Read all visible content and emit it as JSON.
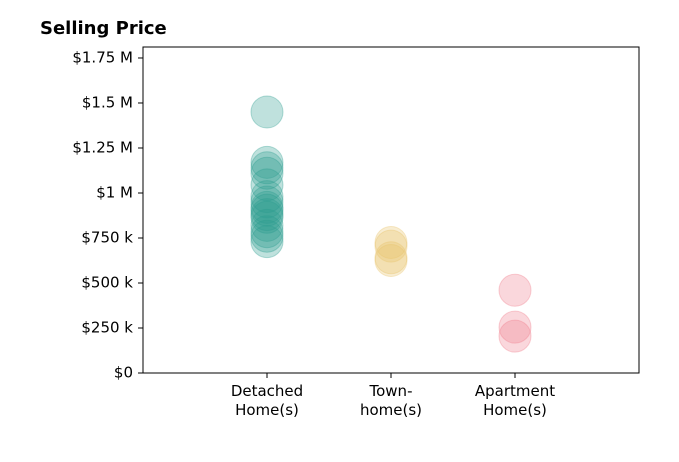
{
  "chart_data": {
    "type": "strip",
    "title": "Selling Price",
    "categories": [
      "Detached\nHome(s)",
      "Town-\nhome(s)",
      "Apartment\nHome(s)"
    ],
    "colors": [
      "#2a9d8f",
      "#e9c46a",
      "#f07b8a"
    ],
    "values": [
      [
        1450000,
        1170000,
        1140000,
        1110000,
        1045000,
        980000,
        950000,
        920000,
        905000,
        880000,
        865000,
        820000,
        785000,
        760000,
        730000
      ],
      [
        725000,
        705000,
        640000,
        625000
      ],
      [
        460000,
        255000,
        205000
      ]
    ],
    "ylim": [
      0,
      1811000
    ],
    "yticks": [
      {
        "value": 0,
        "label": "$0"
      },
      {
        "value": 250000,
        "label": "$250 k"
      },
      {
        "value": 500000,
        "label": "$500 k"
      },
      {
        "value": 750000,
        "label": "$750 k"
      },
      {
        "value": 1000000,
        "label": "$1 M"
      },
      {
        "value": 1250000,
        "label": "$1.25 M"
      },
      {
        "value": 1500000,
        "label": "$1.5 M"
      },
      {
        "value": 1750000,
        "label": "$1.75 M"
      }
    ]
  }
}
